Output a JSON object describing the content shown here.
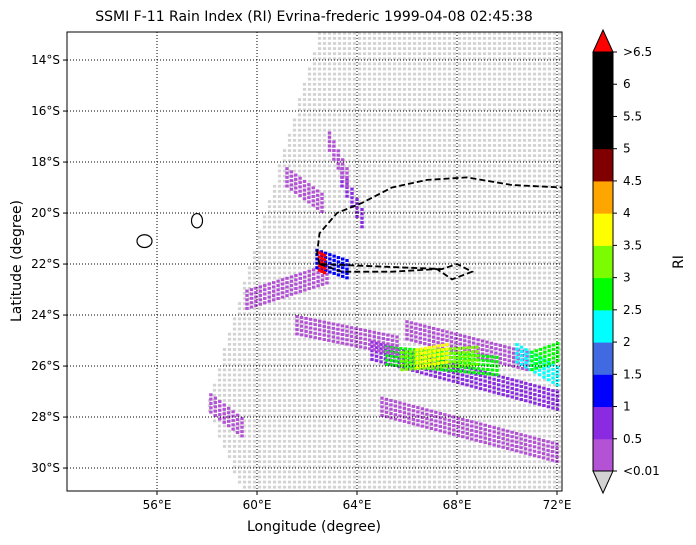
{
  "chart_data": {
    "type": "heatmap",
    "title": "SSMI F-11 Rain Index (RI) Evrina-frederic 1999-04-08 02:45:38",
    "xlabel": "Longitude (degree)",
    "ylabel": "Latitude (degree)",
    "xlim": [
      52.4,
      72.2
    ],
    "ylim": [
      -30.9,
      -12.9
    ],
    "x_ticks": [
      56,
      60,
      64,
      68,
      72
    ],
    "x_tick_labels": [
      "56°E",
      "60°E",
      "64°E",
      "68°E",
      "72°E"
    ],
    "y_ticks": [
      -14,
      -16,
      -18,
      -20,
      -22,
      -24,
      -26,
      -28,
      -30
    ],
    "y_tick_labels": [
      "14°S",
      "16°S",
      "18°S",
      "20°S",
      "22°S",
      "24°S",
      "26°S",
      "28°S",
      "30°S"
    ],
    "grid": true,
    "colorbar": {
      "label": "RI",
      "boundaries": [
        0.01,
        0.5,
        1,
        1.5,
        2,
        2.5,
        3,
        3.5,
        4,
        4.5,
        5,
        5.5,
        6,
        6.5
      ],
      "tick_labels": [
        "<0.01",
        "0.5",
        "1",
        "1.5",
        "2",
        "2.5",
        "3",
        "3.5",
        "4",
        "4.5",
        "5",
        "5.5",
        "6",
        ">6.5"
      ],
      "colors": [
        "#b452d6",
        "#8a2be2",
        "#0000ff",
        "#4169e1",
        "#00ffff",
        "#00ff00",
        "#7cfc00",
        "#ffff00",
        "#ffa500",
        "#800000",
        "#000000",
        "#000000",
        "#000000"
      ],
      "under_color": "#d3d3d3",
      "over_color": "#ff0000"
    },
    "swath": {
      "no_rain_color": "#d3d3d3",
      "corners": [
        [
          62.5,
          -12.9
        ],
        [
          72.2,
          -12.9
        ],
        [
          72.2,
          -30.9
        ],
        [
          59.4,
          -30.9
        ],
        [
          58.0,
          -27.6
        ]
      ]
    },
    "rain_regions": [
      {
        "lon": [
          66.0,
          70.8
        ],
        "lat": [
          -24.6,
          -25.8
        ],
        "value": 0.3
      },
      {
        "lon": [
          64.6,
          72.2
        ],
        "lat": [
          -25.4,
          -27.4
        ],
        "value": 0.8
      },
      {
        "lon": [
          65.2,
          69.6
        ],
        "lat": [
          -25.6,
          -26.0
        ],
        "value": 2.7
      },
      {
        "lon": [
          65.8,
          68.8
        ],
        "lat": [
          -25.8,
          -25.6
        ],
        "value": 3.2
      },
      {
        "lon": [
          66.4,
          67.6
        ],
        "lat": [
          -25.7,
          -25.5
        ],
        "value": 3.7
      },
      {
        "lon": [
          70.4,
          72.2
        ],
        "lat": [
          -25.5,
          -26.5
        ],
        "value": 2.2
      },
      {
        "lon": [
          71.0,
          72.2
        ],
        "lat": [
          -25.8,
          -25.4
        ],
        "value": 2.8
      },
      {
        "lon": [
          61.6,
          65.6
        ],
        "lat": [
          -24.4,
          -25.2
        ],
        "value": 0.4
      },
      {
        "lon": [
          65.0,
          72.0
        ],
        "lat": [
          -27.6,
          -29.4
        ],
        "value": 0.3
      },
      {
        "lon": [
          59.6,
          62.8
        ],
        "lat": [
          -23.4,
          -22.4
        ],
        "value": 0.2
      },
      {
        "lon": [
          57.8,
          59.4
        ],
        "lat": [
          -27.2,
          -28.4
        ],
        "value": 0.2
      },
      {
        "lon": [
          61.2,
          62.6
        ],
        "lat": [
          -18.6,
          -19.6
        ],
        "value": 0.3
      },
      {
        "lon": [
          63.4,
          64.2
        ],
        "lat": [
          -18.6,
          -20.2
        ],
        "value": 0.6
      },
      {
        "lon": [
          62.9,
          63.6
        ],
        "lat": [
          -17.2,
          -18.6
        ],
        "value": 0.4
      },
      {
        "lon": [
          62.4,
          63.6
        ],
        "lat": [
          -21.8,
          -22.2
        ],
        "value": 1.2
      },
      {
        "lon": [
          62.5,
          62.7
        ],
        "lat": [
          -21.9,
          -22.0
        ],
        "value": 6.8
      }
    ],
    "dashed_track": [
      [
        62.5,
        -22.0
      ],
      [
        62.4,
        -21.6
      ],
      [
        62.5,
        -20.8
      ],
      [
        63.2,
        -20.0
      ],
      [
        64.2,
        -19.6
      ],
      [
        65.4,
        -19.0
      ],
      [
        66.8,
        -18.7
      ],
      [
        68.4,
        -18.6
      ],
      [
        70.2,
        -18.9
      ],
      [
        72.2,
        -19.0
      ],
      [
        72.2,
        -19.0
      ]
    ],
    "dashed_track_lower": [
      [
        62.5,
        -22.0
      ],
      [
        63.4,
        -22.3
      ],
      [
        65.4,
        -22.3
      ],
      [
        67.2,
        -22.2
      ],
      [
        67.8,
        -22.6
      ],
      [
        68.6,
        -22.3
      ],
      [
        68.0,
        -22.0
      ],
      [
        67.4,
        -22.2
      ],
      [
        62.5,
        -22.0
      ]
    ],
    "islands": [
      {
        "center": [
          55.5,
          -21.1
        ],
        "rx": 0.3,
        "ry": 0.25
      },
      {
        "center": [
          57.6,
          -20.3
        ],
        "rx": 0.22,
        "ry": 0.28
      }
    ]
  }
}
